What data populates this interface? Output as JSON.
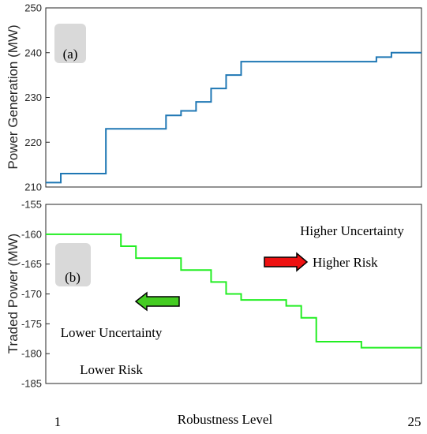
{
  "chart_data": [
    {
      "type": "line",
      "step": true,
      "panel_label": "(a)",
      "ylabel": "Power Generation (MW)",
      "ylim": [
        210,
        250
      ],
      "yticks": [
        210,
        220,
        230,
        240,
        250
      ],
      "xlim": [
        1,
        25
      ],
      "grid": false,
      "series": [
        {
          "color": "#1f77b4",
          "x": [
            1,
            2,
            3,
            4,
            5,
            6,
            7,
            8,
            9,
            10,
            11,
            12,
            13,
            14,
            15,
            16,
            17,
            18,
            19,
            20,
            21,
            22,
            23,
            24,
            25
          ],
          "values": [
            211,
            213,
            213,
            213,
            223,
            223,
            223,
            223,
            226,
            227,
            229,
            232,
            235,
            238,
            238,
            238,
            238,
            238,
            238,
            238,
            238,
            238,
            239,
            240,
            240
          ]
        }
      ]
    },
    {
      "type": "line",
      "step": true,
      "panel_label": "(b)",
      "ylabel": "Traded Power (MW)",
      "xlabel": "Robustness Level",
      "xtick_labels": [
        "1",
        "25"
      ],
      "ylim": [
        -185,
        -155
      ],
      "yticks": [
        -185,
        -180,
        -175,
        -170,
        -165,
        -160,
        -155
      ],
      "xlim": [
        1,
        25
      ],
      "grid": false,
      "series": [
        {
          "color": "#22ee22",
          "x": [
            1,
            2,
            3,
            4,
            5,
            6,
            7,
            8,
            9,
            10,
            11,
            12,
            13,
            14,
            15,
            16,
            17,
            18,
            19,
            20,
            21,
            22,
            23,
            24,
            25
          ],
          "values": [
            -160,
            -160,
            -160,
            -160,
            -160,
            -162,
            -164,
            -164,
            -164,
            -166,
            -166,
            -168,
            -170,
            -171,
            -171,
            -171,
            -172,
            -174,
            -178,
            -178,
            -178,
            -179,
            -179,
            -179,
            -179
          ]
        }
      ],
      "annotations": {
        "higher_uncertainty": "Higher Uncertainty",
        "higher_risk": "Higher Risk",
        "lower_uncertainty": "Lower Uncertainty",
        "lower_risk": "Lower Risk",
        "right_arrow_color": "#ee1111",
        "left_arrow_color": "#44cc22",
        "label_box_color": "#d9d9d9"
      }
    }
  ]
}
